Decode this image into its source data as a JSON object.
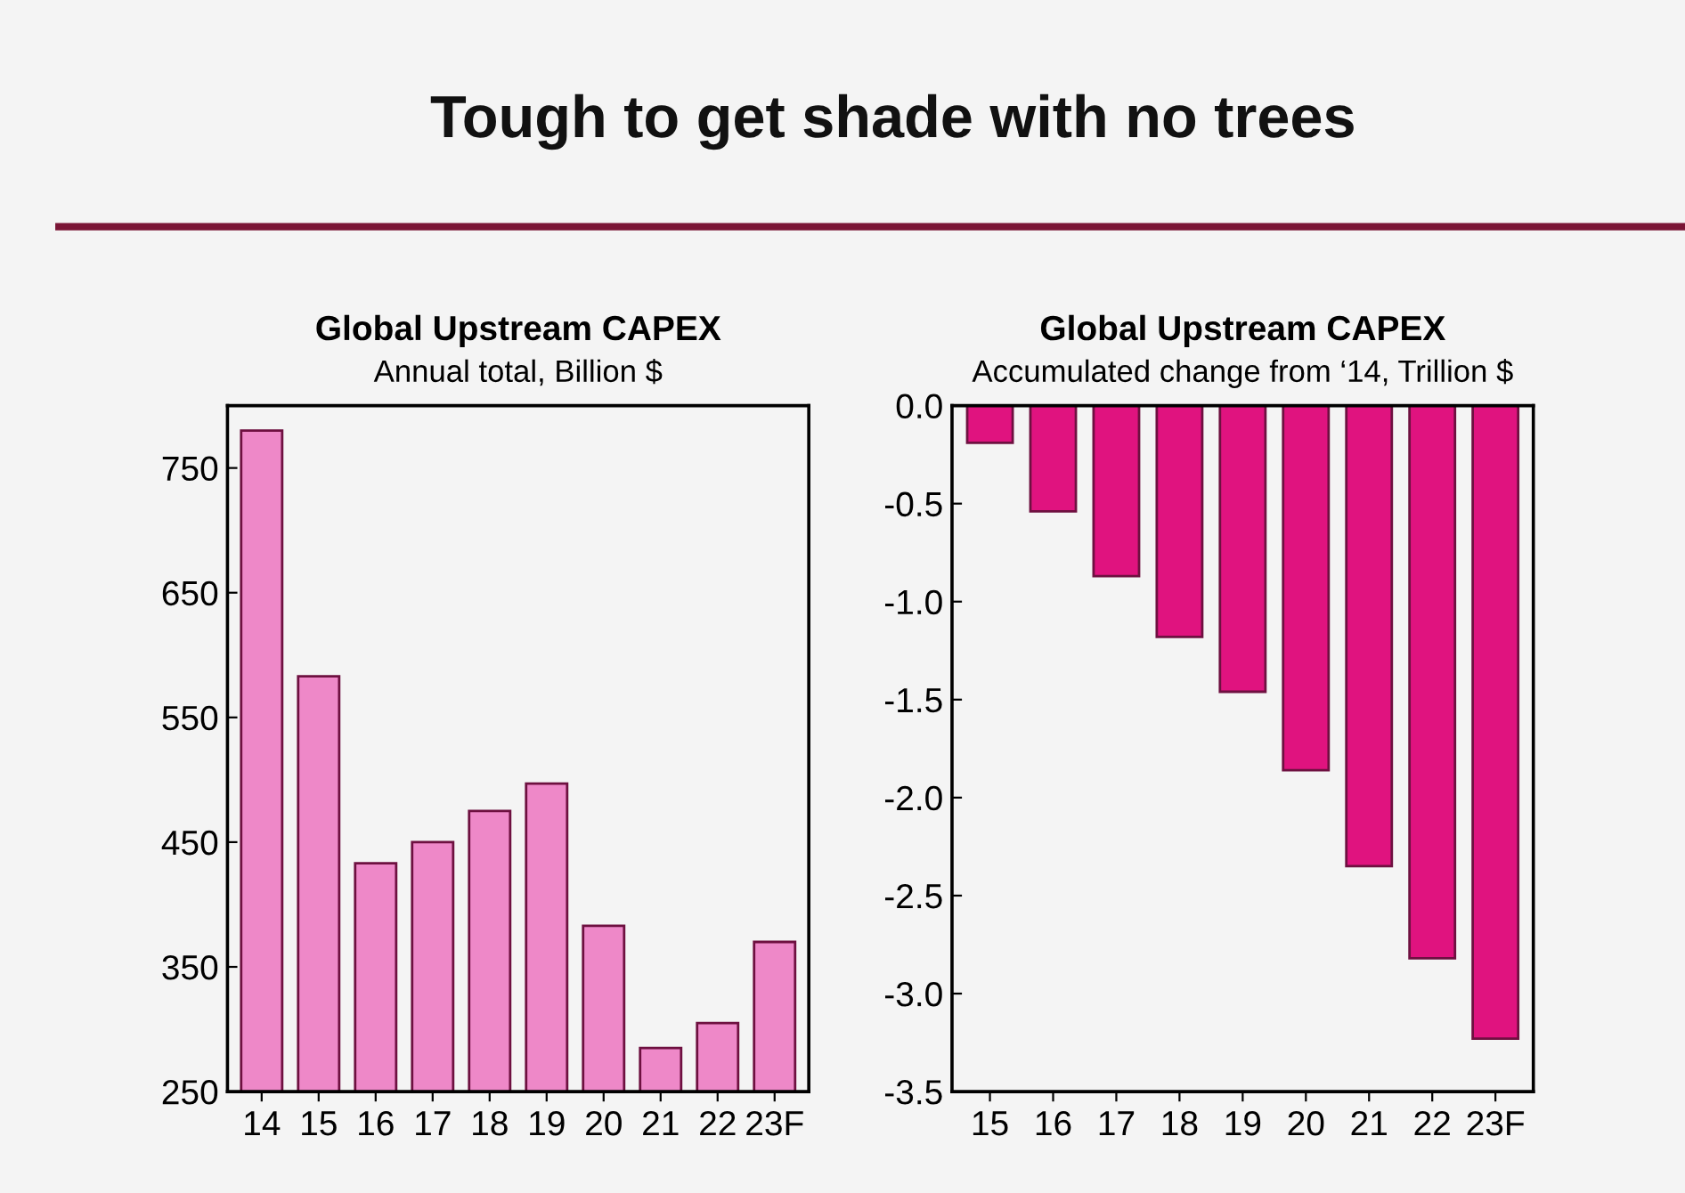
{
  "chart_data": [
    {
      "type": "bar",
      "title": "Global Upstream CAPEX",
      "subtitle": "Annual total, Billion $",
      "annotations": [
        "Tough to get shade with no trees"
      ],
      "categories": [
        "14",
        "15",
        "16",
        "17",
        "18",
        "19",
        "20",
        "21",
        "22",
        "23F"
      ],
      "values": [
        780,
        583,
        433,
        450,
        475,
        497,
        383,
        285,
        305,
        370
      ],
      "color": "#ee88c8",
      "ylim": [
        250,
        800
      ],
      "yticks": [
        250,
        350,
        450,
        550,
        650,
        750
      ],
      "grid": false,
      "legend": false
    },
    {
      "type": "bar",
      "title": "Global Upstream CAPEX",
      "subtitle": "Accumulated change from ‘14, Trillion $",
      "categories": [
        "15",
        "16",
        "17",
        "18",
        "19",
        "20",
        "21",
        "22",
        "23F"
      ],
      "values": [
        -0.19,
        -0.54,
        -0.87,
        -1.18,
        -1.46,
        -1.86,
        -2.35,
        -2.82,
        -3.23
      ],
      "color": "#e0137f",
      "ylim": [
        -3.5,
        0.0
      ],
      "yticks": [
        {
          "value": 0,
          "label": "0.0"
        },
        -0.5,
        {
          "value": -1,
          "label": "-1.0"
        },
        -1.5,
        {
          "value": -2,
          "label": "-2.0"
        },
        -2.5,
        {
          "value": -3,
          "label": "-3.0"
        },
        -3.5
      ],
      "grid": false,
      "legend": false
    }
  ]
}
